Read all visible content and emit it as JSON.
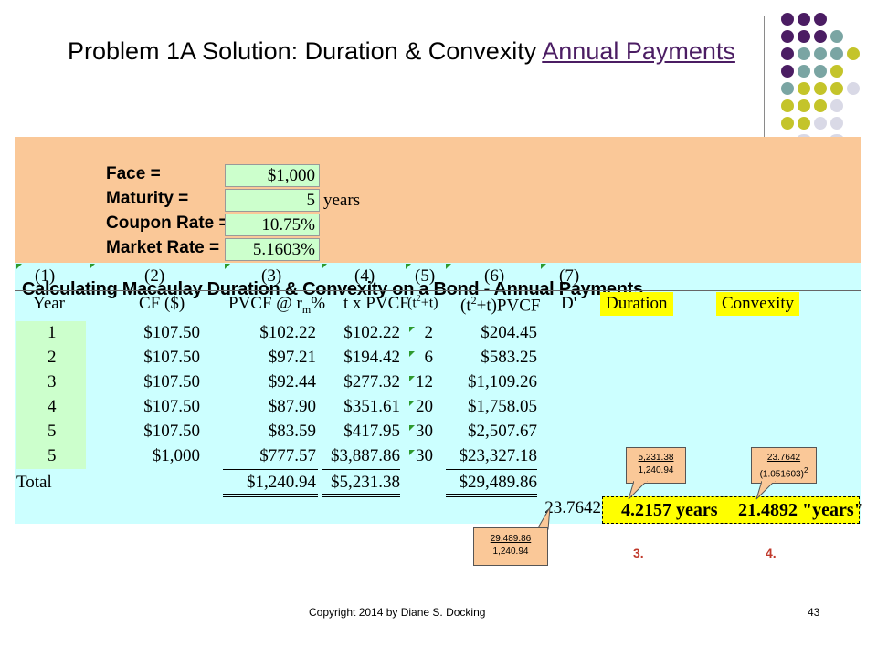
{
  "slide": {
    "title_main": "Problem 1A Solution: Duration & Convexity ",
    "title_link": "Annual Payments",
    "footer": "Copyright 2014 by Diane S. Docking",
    "page_number": "43"
  },
  "sheet": {
    "title": "Calculating Macaulay Duration & Convexity on a Bond - Annual Payments",
    "params": [
      {
        "label": "Face =",
        "value": "$1,000",
        "unit": ""
      },
      {
        "label": "Maturity =",
        "value": "5",
        "unit": "years"
      },
      {
        "label": "Coupon Rate =",
        "value": "10.75%",
        "unit": ""
      },
      {
        "label": "Market Rate =",
        "value": "5.1603%",
        "unit": ""
      }
    ],
    "column_numbers": [
      "(1)",
      "(2)",
      "(3)",
      "(4)",
      "(5)",
      "(6)",
      "(7)"
    ],
    "headers": {
      "year": "Year",
      "cf": "CF ($)",
      "pvcf": "PVCF @ r",
      "pvcf_sub": "m",
      "pvcf_pct": "%",
      "txpvcf": "t x PVCF",
      "t2t": "(t",
      "t2t_sup": "2",
      "t2t_end": "+t)",
      "t2tpvcf": "(t",
      "t2tpvcf_sup": "2",
      "t2tpvcf_end": "+t)PVCF",
      "d": "D'",
      "duration": "Duration",
      "convexity": "Convexity"
    },
    "rows": [
      {
        "year": "1",
        "cf": "$107.50",
        "pvcf": "$102.22",
        "tpvcf": "$102.22",
        "t2t": "2",
        "t2tpvcf": "$204.45"
      },
      {
        "year": "2",
        "cf": "$107.50",
        "pvcf": "$97.21",
        "tpvcf": "$194.42",
        "t2t": "6",
        "t2tpvcf": "$583.25"
      },
      {
        "year": "3",
        "cf": "$107.50",
        "pvcf": "$92.44",
        "tpvcf": "$277.32",
        "t2t": "12",
        "t2tpvcf": "$1,109.26"
      },
      {
        "year": "4",
        "cf": "$107.50",
        "pvcf": "$87.90",
        "tpvcf": "$351.61",
        "t2t": "20",
        "t2tpvcf": "$1,758.05"
      },
      {
        "year": "5",
        "cf": "$107.50",
        "pvcf": "$83.59",
        "tpvcf": "$417.95",
        "t2t": "30",
        "t2tpvcf": "$2,507.67"
      },
      {
        "year": "5",
        "cf": "$1,000",
        "pvcf": "$777.57",
        "tpvcf": "$3,887.86",
        "t2t": "30",
        "t2tpvcf": "$23,327.18"
      }
    ],
    "total": {
      "label": "Total",
      "pvcf": "$1,240.94",
      "tpvcf": "$5,231.38",
      "t2tpvcf": "$29,489.86"
    },
    "d_value": "23.7642",
    "duration_result": "4.2157 years",
    "convexity_result": "21.4892 \"years\""
  },
  "callouts": {
    "d": {
      "num": "29,489.86",
      "den": "1,240.94"
    },
    "duration": {
      "num": "5,231.38",
      "den": "1,240.94"
    },
    "convexity": {
      "num": "23.7642",
      "den": "(1.051603)",
      "den_sup": "2"
    }
  },
  "markers": {
    "duration": "3.",
    "convexity": "4."
  },
  "colors": {
    "purple": "#4b1d63",
    "teal": "#7aa5a3",
    "olive": "#c4c42a",
    "lavender": "#d9d9e6",
    "orange_band": "#fac898",
    "blue_band": "#ccffff",
    "green_cell": "#ccffcc",
    "highlight": "#ffff00",
    "marker_red": "#c0392b"
  }
}
